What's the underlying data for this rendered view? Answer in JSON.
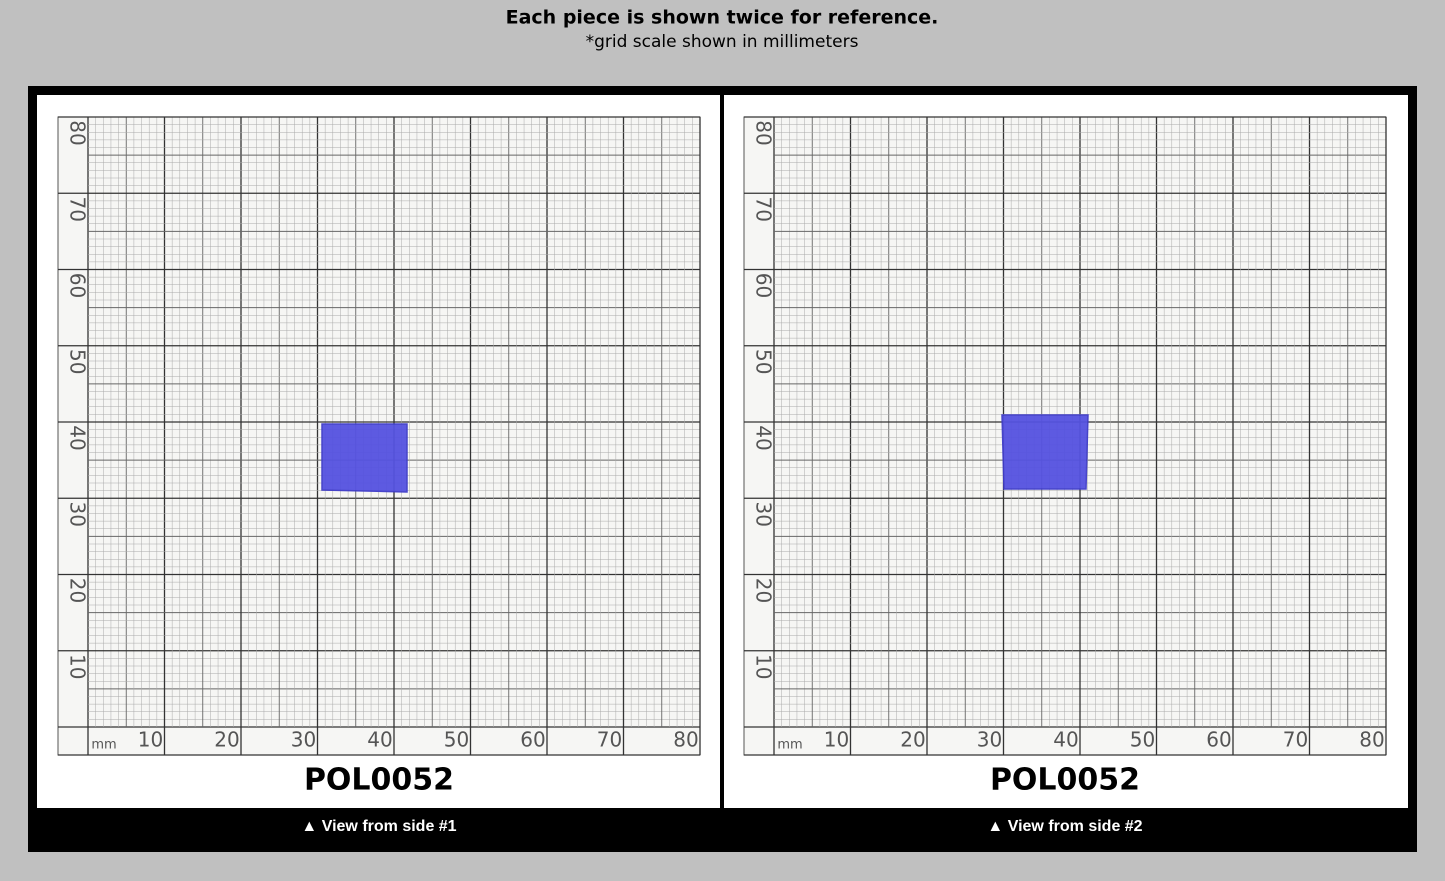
{
  "header": {
    "title": "Each piece is shown twice for reference.",
    "subtitle": "*grid scale shown in millimeters"
  },
  "panels": [
    {
      "y_labels": [
        "10",
        "20",
        "30",
        "40",
        "50",
        "60",
        "70",
        "80"
      ],
      "unit": "mm",
      "x_labels": [
        "10",
        "20",
        "30",
        "40",
        "50",
        "60",
        "70",
        "80"
      ],
      "code": "POL0052",
      "caption": "▲ View from side #1"
    },
    {
      "y_labels": [
        "10",
        "20",
        "30",
        "40",
        "50",
        "60",
        "70",
        "80"
      ],
      "unit": "mm",
      "x_labels": [
        "10",
        "20",
        "30",
        "40",
        "50",
        "60",
        "70",
        "80"
      ],
      "code": "POL0052",
      "caption": "▲ View from side #2"
    }
  ]
}
